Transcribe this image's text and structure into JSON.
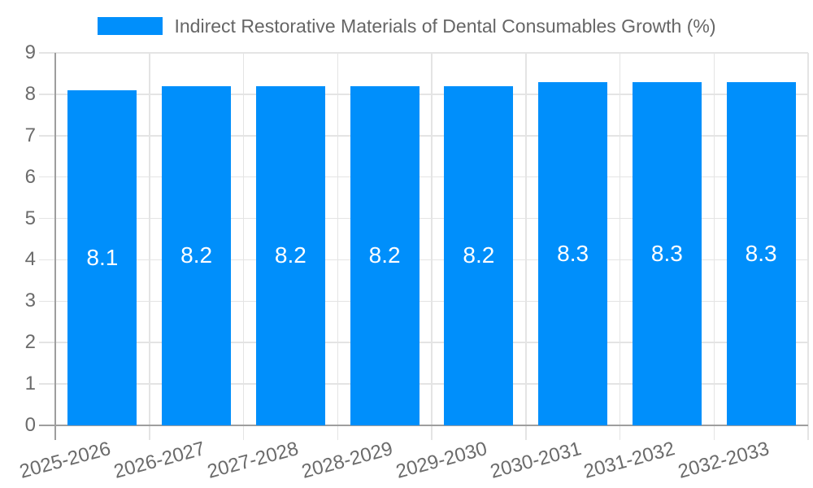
{
  "legend": {
    "label": "Indirect Restorative Materials of Dental Consumables Growth (%)"
  },
  "chart_data": {
    "type": "bar",
    "title": "Indirect Restorative Materials of Dental Consumables Growth (%)",
    "categories": [
      "2025-2026",
      "2026-2027",
      "2027-2028",
      "2028-2029",
      "2029-2030",
      "2030-2031",
      "2031-2032",
      "2032-2033"
    ],
    "values": [
      8.1,
      8.2,
      8.2,
      8.2,
      8.2,
      8.3,
      8.3,
      8.3
    ],
    "value_labels": [
      "8.1",
      "8.2",
      "8.2",
      "8.2",
      "8.2",
      "8.3",
      "8.3",
      "8.3"
    ],
    "ylabel": "",
    "xlabel": "",
    "ylim": [
      0,
      9
    ],
    "y_ticks": [
      0,
      1,
      2,
      3,
      4,
      5,
      6,
      7,
      8,
      9
    ],
    "grid": true,
    "legend_position": "top",
    "x_label_rotation_deg": -15,
    "colors": {
      "bar": "#008FFB",
      "value_label": "#FFFFFF",
      "axis_text": "#6B6B6B",
      "legend_text": "#666666",
      "grid_line": "#E4E4E4",
      "axis_line": "#9E9E9E",
      "background": "#FFFFFF"
    }
  }
}
